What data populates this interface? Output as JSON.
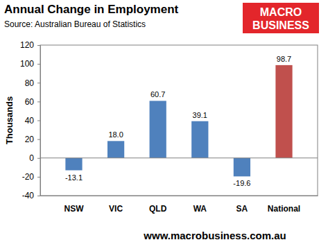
{
  "chart_data": {
    "type": "bar",
    "title": "Annual Change in Employment",
    "subtitle": "Source: Australian Bureau of Statistics",
    "y_label": "Thousands",
    "annotations": [
      "MACRO",
      "BUSINESS",
      "www.macrobusiness.com.au"
    ],
    "categories": [
      "NSW",
      "VIC",
      "QLD",
      "WA",
      "SA",
      "National"
    ],
    "values": [
      -13.1,
      18.0,
      60.7,
      39.1,
      -19.6,
      98.7
    ],
    "value_labels": [
      "-13.1",
      "18.0",
      "60.7",
      "39.1",
      "-19.6",
      "98.7"
    ],
    "colors": [
      "#4f81bd",
      "#4f81bd",
      "#4f81bd",
      "#4f81bd",
      "#4f81bd",
      "#c0504d"
    ],
    "ylim": [
      -40,
      120
    ],
    "yticks": [
      -40,
      -20,
      0,
      20,
      40,
      60,
      80,
      100,
      120
    ],
    "grid": false,
    "data_labels": true
  }
}
